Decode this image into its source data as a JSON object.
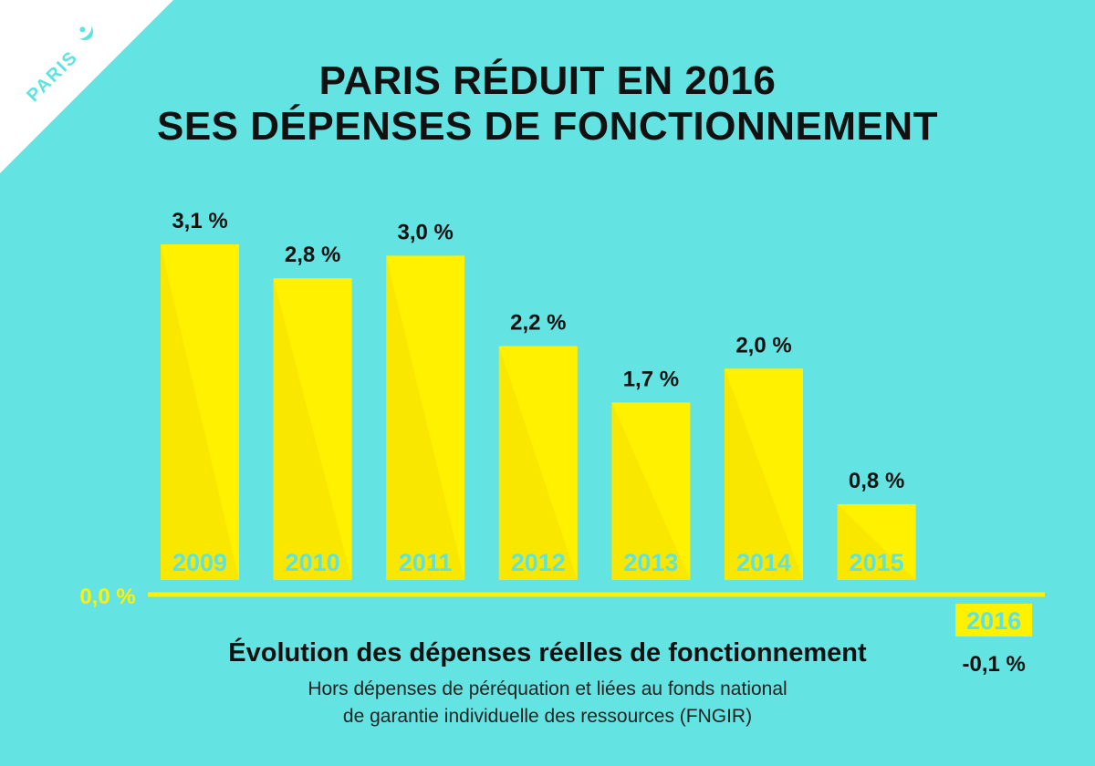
{
  "brand": {
    "label": "PARIS"
  },
  "title_line1": "PARIS RÉDUIT EN 2016",
  "title_line2": "SES DÉPENSES DE FONCTIONNEMENT",
  "caption": {
    "heading": "Évolution des dépenses réelles de fonctionnement",
    "note_line1": "Hors dépenses de péréquation et liées au fonds national",
    "note_line2": "de garantie individuelle des ressources (FNGIR)"
  },
  "colors": {
    "background": "#63e3e1",
    "bar": "#fff100",
    "bar_shade": "#f5dd00",
    "year_text": "#5ee3e0",
    "axis": "#fff100",
    "text": "#111111"
  },
  "chart_data": {
    "type": "bar",
    "categories": [
      "2009",
      "2010",
      "2011",
      "2012",
      "2013",
      "2014",
      "2015",
      "2016"
    ],
    "values": [
      3.1,
      2.8,
      3.0,
      2.2,
      1.7,
      2.0,
      0.8,
      -0.1
    ],
    "value_labels": [
      "3,1 %",
      "2,8 %",
      "3,0 %",
      "2,2 %",
      "1,7 %",
      "2,0 %",
      "0,8 %",
      "-0,1 %"
    ],
    "baseline_label": "0,0 %",
    "title": "PARIS RÉDUIT EN 2016 SES DÉPENSES DE FONCTIONNEMENT",
    "xlabel": "",
    "ylabel": "",
    "ylim": [
      -0.1,
      3.1
    ],
    "grid": false,
    "legend": "none"
  }
}
